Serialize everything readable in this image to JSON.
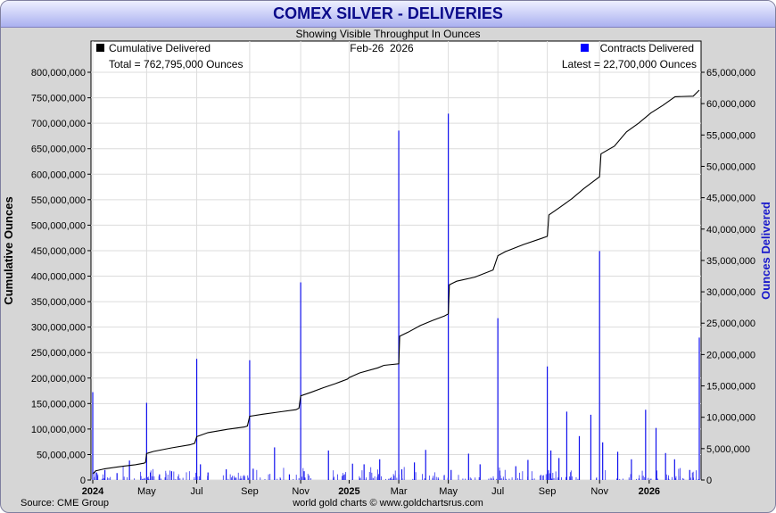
{
  "header": {
    "title": "COMEX SILVER - DELIVERIES",
    "subtitle": "Showing Visible Throughput In Ounces",
    "date": "Feb-26  2026"
  },
  "legend": {
    "left_series": "Cumulative Delivered",
    "left_total": "Total = 762,795,000 Ounces",
    "right_series": "Contracts Delivered",
    "right_latest": "Latest = 22,700,000 Ounces"
  },
  "footer": {
    "source": "Source: CME Group",
    "credit": "world gold charts © www.goldchartsrus.com"
  },
  "colors": {
    "cumulative": "#000000",
    "contracts": "#0000ff",
    "title": "#0a0a8a",
    "frame_bg": "#d6d6d6",
    "title_bar": "#aab0f0"
  },
  "chart_data": {
    "type": "line",
    "ylabel_left": "Cumulative Ounces",
    "ylabel_right": "Ounces Delivered",
    "ylim_left": [
      0,
      800000000
    ],
    "ylim_right": [
      0,
      65000000
    ],
    "yticks_left": [
      "0",
      "50,000,000",
      "100,000,000",
      "150,000,000",
      "200,000,000",
      "250,000,000",
      "300,000,000",
      "350,000,000",
      "400,000,000",
      "450,000,000",
      "500,000,000",
      "550,000,000",
      "600,000,000",
      "650,000,000",
      "700,000,000",
      "750,000,000",
      "800,000,000"
    ],
    "yticks_right": [
      "0",
      "5,000,000",
      "10,000,000",
      "15,000,000",
      "20,000,000",
      "25,000,000",
      "30,000,000",
      "35,000,000",
      "40,000,000",
      "45,000,000",
      "50,000,000",
      "55,000,000",
      "60,000,000",
      "65,000,000"
    ],
    "xticks": [
      {
        "label": "2024",
        "pos": 0.0,
        "bold": true
      },
      {
        "label": "May",
        "pos": 0.0888,
        "bold": false
      },
      {
        "label": "Jul",
        "pos": 0.1714,
        "bold": false
      },
      {
        "label": "Sep",
        "pos": 0.2587,
        "bold": false
      },
      {
        "label": "Nov",
        "pos": 0.3428,
        "bold": false
      },
      {
        "label": "2025",
        "pos": 0.4227,
        "bold": true
      },
      {
        "label": "Mar",
        "pos": 0.5045,
        "bold": false
      },
      {
        "label": "May",
        "pos": 0.5862,
        "bold": false
      },
      {
        "label": "Jul",
        "pos": 0.6679,
        "bold": false
      },
      {
        "label": "Sep",
        "pos": 0.7494,
        "bold": false
      },
      {
        "label": "Nov",
        "pos": 0.8356,
        "bold": false
      },
      {
        "label": "2026",
        "pos": 0.9174,
        "bold": true
      }
    ],
    "series": [
      {
        "name": "Cumulative Delivered",
        "points": [
          [
            0.0,
            12000000
          ],
          [
            0.005,
            18000000
          ],
          [
            0.02,
            22000000
          ],
          [
            0.05,
            27000000
          ],
          [
            0.07,
            30000000
          ],
          [
            0.085,
            33000000
          ],
          [
            0.087,
            35000000
          ],
          [
            0.0888,
            52000000
          ],
          [
            0.1,
            56000000
          ],
          [
            0.13,
            63000000
          ],
          [
            0.16,
            69000000
          ],
          [
            0.168,
            72000000
          ],
          [
            0.1714,
            85000000
          ],
          [
            0.19,
            93000000
          ],
          [
            0.22,
            99000000
          ],
          [
            0.25,
            104000000
          ],
          [
            0.255,
            106000000
          ],
          [
            0.2587,
            125000000
          ],
          [
            0.28,
            129000000
          ],
          [
            0.31,
            134000000
          ],
          [
            0.335,
            138000000
          ],
          [
            0.34,
            141000000
          ],
          [
            0.3428,
            165000000
          ],
          [
            0.36,
            172000000
          ],
          [
            0.38,
            181000000
          ],
          [
            0.4,
            189000000
          ],
          [
            0.42,
            198000000
          ],
          [
            0.4227,
            201000000
          ],
          [
            0.44,
            210000000
          ],
          [
            0.47,
            220000000
          ],
          [
            0.48,
            225000000
          ],
          [
            0.5045,
            228000000
          ],
          [
            0.506,
            282000000
          ],
          [
            0.52,
            290000000
          ],
          [
            0.54,
            303000000
          ],
          [
            0.56,
            313000000
          ],
          [
            0.58,
            322000000
          ],
          [
            0.5862,
            326000000
          ],
          [
            0.588,
            383000000
          ],
          [
            0.6,
            390000000
          ],
          [
            0.63,
            398000000
          ],
          [
            0.66,
            412000000
          ],
          [
            0.6679,
            440000000
          ],
          [
            0.68,
            448000000
          ],
          [
            0.71,
            462000000
          ],
          [
            0.74,
            474000000
          ],
          [
            0.7494,
            478000000
          ],
          [
            0.752,
            520000000
          ],
          [
            0.77,
            535000000
          ],
          [
            0.79,
            552000000
          ],
          [
            0.81,
            572000000
          ],
          [
            0.8356,
            595000000
          ],
          [
            0.838,
            640000000
          ],
          [
            0.86,
            655000000
          ],
          [
            0.88,
            683000000
          ],
          [
            0.9,
            700000000
          ],
          [
            0.92,
            720000000
          ],
          [
            0.94,
            735000000
          ],
          [
            0.96,
            752000000
          ],
          [
            0.99,
            753000000
          ],
          [
            1.0,
            765000000
          ]
        ]
      },
      {
        "name": "Contracts Delivered",
        "spikes": [
          [
            0.0,
            14000000
          ],
          [
            0.0888,
            12300000
          ],
          [
            0.1714,
            19300000
          ],
          [
            0.2587,
            19100000
          ],
          [
            0.3428,
            31500000
          ],
          [
            0.5045,
            55700000
          ],
          [
            0.5862,
            58400000
          ],
          [
            0.6679,
            25800000
          ],
          [
            0.7494,
            18100000
          ],
          [
            0.8356,
            36500000
          ],
          [
            0.9115,
            11200000
          ],
          [
            1.0,
            22700000
          ],
          [
            0.0065,
            1200000
          ],
          [
            0.02,
            1600000
          ],
          [
            0.04,
            1100000
          ],
          [
            0.0605,
            3100000
          ],
          [
            0.095,
            1200000
          ],
          [
            0.11,
            900000
          ],
          [
            0.13,
            1400000
          ],
          [
            0.1775,
            2500000
          ],
          [
            0.19,
            1200000
          ],
          [
            0.22,
            1700000
          ],
          [
            0.2645,
            1800000
          ],
          [
            0.2997,
            5200000
          ],
          [
            0.3242,
            900000
          ],
          [
            0.3485,
            1400000
          ],
          [
            0.3886,
            4700000
          ],
          [
            0.4283,
            2600000
          ],
          [
            0.4473,
            2500000
          ],
          [
            0.4731,
            3300000
          ],
          [
            0.5095,
            1700000
          ],
          [
            0.5303,
            2800000
          ],
          [
            0.5489,
            4800000
          ],
          [
            0.5908,
            1600000
          ],
          [
            0.6196,
            4200000
          ],
          [
            0.6386,
            2500000
          ],
          [
            0.6711,
            1500000
          ],
          [
            0.6975,
            2200000
          ],
          [
            0.7175,
            3200000
          ],
          [
            0.7553,
            4700000
          ],
          [
            0.7686,
            3500000
          ],
          [
            0.7815,
            10900000
          ],
          [
            0.8022,
            7000000
          ],
          [
            0.8212,
            10400000
          ],
          [
            0.8407,
            6000000
          ],
          [
            0.8655,
            4500000
          ],
          [
            0.8881,
            3300000
          ],
          [
            0.9287,
            8300000
          ],
          [
            0.9444,
            4300000
          ],
          [
            0.9593,
            3300000
          ],
          [
            0.9842,
            1600000
          ]
        ]
      }
    ]
  }
}
